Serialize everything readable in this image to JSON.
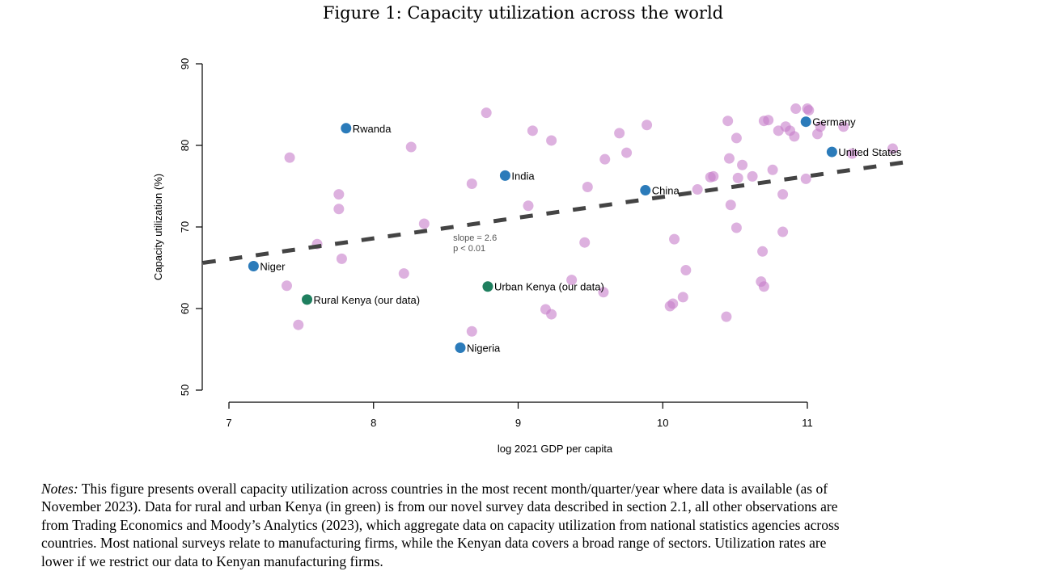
{
  "figure_title": "Figure 1: Capacity utilization across the world",
  "chart_data": {
    "type": "scatter",
    "title": "Figure 1: Capacity utilization across the world",
    "xlabel": "log 2021 GDP per capita",
    "ylabel": "Capacity utilization (%)",
    "xlim": [
      6.82,
      11.7
    ],
    "ylim": [
      50,
      90
    ],
    "xticks": [
      7,
      8,
      9,
      10,
      11
    ],
    "yticks": [
      50,
      60,
      70,
      80,
      90
    ],
    "grid": false,
    "colors": {
      "other": "#c77dc9",
      "highlight": "#2b7bba",
      "kenya": "#1f7f5f",
      "fit": "#444444"
    },
    "fit_line": {
      "slope": 2.6,
      "x": [
        6.82,
        11.7
      ],
      "y": [
        65.6,
        78.0
      ],
      "label_slope": "slope = 2.6",
      "label_p": "p < 0.01",
      "label_at": [
        8.55,
        68.3
      ]
    },
    "other_points": [
      [
        7.42,
        78.5
      ],
      [
        7.76,
        74.0
      ],
      [
        7.76,
        72.2
      ],
      [
        7.61,
        67.9
      ],
      [
        7.78,
        66.1
      ],
      [
        7.4,
        62.8
      ],
      [
        7.48,
        58.0
      ],
      [
        8.26,
        79.8
      ],
      [
        8.35,
        70.4
      ],
      [
        8.21,
        64.3
      ],
      [
        8.78,
        84.0
      ],
      [
        8.68,
        75.3
      ],
      [
        8.68,
        57.2
      ],
      [
        9.1,
        81.8
      ],
      [
        9.23,
        80.6
      ],
      [
        9.07,
        72.6
      ],
      [
        9.48,
        74.9
      ],
      [
        9.46,
        68.1
      ],
      [
        9.37,
        63.5
      ],
      [
        9.19,
        59.9
      ],
      [
        9.23,
        59.3
      ],
      [
        9.6,
        78.3
      ],
      [
        9.7,
        81.5
      ],
      [
        9.75,
        79.1
      ],
      [
        9.89,
        82.5
      ],
      [
        9.59,
        62.0
      ],
      [
        10.08,
        68.5
      ],
      [
        10.16,
        64.7
      ],
      [
        10.05,
        60.3
      ],
      [
        10.07,
        60.6
      ],
      [
        10.14,
        61.4
      ],
      [
        10.24,
        74.6
      ],
      [
        10.33,
        76.1
      ],
      [
        10.35,
        76.2
      ],
      [
        10.45,
        83.0
      ],
      [
        10.51,
        80.9
      ],
      [
        10.46,
        78.4
      ],
      [
        10.55,
        77.6
      ],
      [
        10.47,
        72.7
      ],
      [
        10.52,
        76.0
      ],
      [
        10.62,
        76.2
      ],
      [
        10.51,
        69.9
      ],
      [
        10.69,
        67.0
      ],
      [
        10.68,
        63.3
      ],
      [
        10.7,
        62.7
      ],
      [
        10.44,
        59.0
      ],
      [
        10.7,
        83.0
      ],
      [
        10.73,
        83.1
      ],
      [
        10.8,
        81.8
      ],
      [
        10.85,
        82.3
      ],
      [
        10.88,
        81.8
      ],
      [
        10.91,
        81.1
      ],
      [
        10.76,
        77.0
      ],
      [
        10.83,
        74.0
      ],
      [
        10.83,
        69.4
      ],
      [
        10.92,
        84.5
      ],
      [
        11.0,
        84.5
      ],
      [
        11.01,
        84.3
      ],
      [
        11.09,
        82.3
      ],
      [
        11.07,
        81.4
      ],
      [
        11.25,
        82.3
      ],
      [
        11.31,
        79.0
      ],
      [
        11.59,
        79.6
      ],
      [
        10.99,
        75.9
      ]
    ],
    "labeled_points": [
      {
        "name": "Rwanda",
        "x": 7.81,
        "y": 82.1,
        "group": "highlight"
      },
      {
        "name": "India",
        "x": 8.91,
        "y": 76.3,
        "group": "highlight"
      },
      {
        "name": "Niger",
        "x": 7.17,
        "y": 65.2,
        "group": "highlight"
      },
      {
        "name": "Rural Kenya (our data)",
        "x": 7.54,
        "y": 61.1,
        "group": "kenya"
      },
      {
        "name": "Urban Kenya (our data)",
        "x": 8.79,
        "y": 62.7,
        "group": "kenya"
      },
      {
        "name": "Nigeria",
        "x": 8.6,
        "y": 55.2,
        "group": "highlight"
      },
      {
        "name": "China",
        "x": 9.88,
        "y": 74.5,
        "group": "highlight"
      },
      {
        "name": "Germany",
        "x": 10.99,
        "y": 82.9,
        "group": "highlight"
      },
      {
        "name": "United States",
        "x": 11.17,
        "y": 79.2,
        "group": "highlight"
      }
    ]
  },
  "notes": {
    "prefix": "Notes:",
    "lines": [
      " This figure presents overall capacity utilization across countries in the most recent month/quarter/year where data is available (as of",
      "November 2023). Data for rural and urban Kenya (in green) is from our novel survey data described in section 2.1, all other observations are",
      "from Trading Economics and Moody’s Analytics (2023), which aggregate data on capacity utilization from national statistics agencies across",
      "countries. Most national surveys relate to manufacturing firms, while the Kenyan data covers a broad range of sectors. Utilization rates are",
      "lower if we restrict our data to Kenyan manufacturing firms."
    ]
  }
}
